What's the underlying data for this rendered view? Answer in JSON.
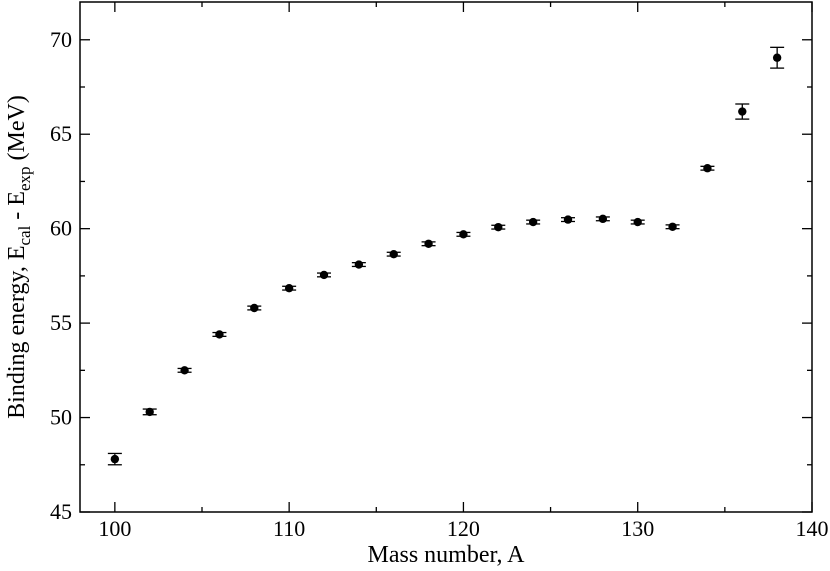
{
  "chart_data": {
    "type": "scatter",
    "xlabel": "Mass number, A",
    "ylabel": {
      "prefix": "Binding energy, E",
      "sub1": "cal",
      "mid": " - E",
      "sub2": "exp",
      "suffix": " (MeV)"
    },
    "xlim": [
      98,
      140
    ],
    "ylim": [
      45,
      72
    ],
    "xticks": [
      100,
      110,
      120,
      130,
      140
    ],
    "yticks": [
      45,
      50,
      55,
      60,
      65,
      70
    ],
    "grid": false,
    "marker_color": "#000000",
    "points": [
      {
        "x": 100,
        "y": 47.8,
        "err": 0.3
      },
      {
        "x": 102,
        "y": 50.3,
        "err": 0.15
      },
      {
        "x": 104,
        "y": 52.5,
        "err": 0.1
      },
      {
        "x": 106,
        "y": 54.4,
        "err": 0.1
      },
      {
        "x": 108,
        "y": 55.8,
        "err": 0.1
      },
      {
        "x": 110,
        "y": 56.85,
        "err": 0.1
      },
      {
        "x": 112,
        "y": 57.55,
        "err": 0.1
      },
      {
        "x": 114,
        "y": 58.1,
        "err": 0.1
      },
      {
        "x": 116,
        "y": 58.65,
        "err": 0.1
      },
      {
        "x": 118,
        "y": 59.2,
        "err": 0.1
      },
      {
        "x": 120,
        "y": 59.7,
        "err": 0.1
      },
      {
        "x": 122,
        "y": 60.08,
        "err": 0.1
      },
      {
        "x": 124,
        "y": 60.35,
        "err": 0.1
      },
      {
        "x": 126,
        "y": 60.48,
        "err": 0.1
      },
      {
        "x": 128,
        "y": 60.52,
        "err": 0.1
      },
      {
        "x": 130,
        "y": 60.35,
        "err": 0.1
      },
      {
        "x": 132,
        "y": 60.1,
        "err": 0.1
      },
      {
        "x": 134,
        "y": 63.2,
        "err": 0.1
      },
      {
        "x": 136,
        "y": 66.2,
        "err": 0.4
      },
      {
        "x": 138,
        "y": 69.05,
        "err": 0.55
      }
    ]
  }
}
